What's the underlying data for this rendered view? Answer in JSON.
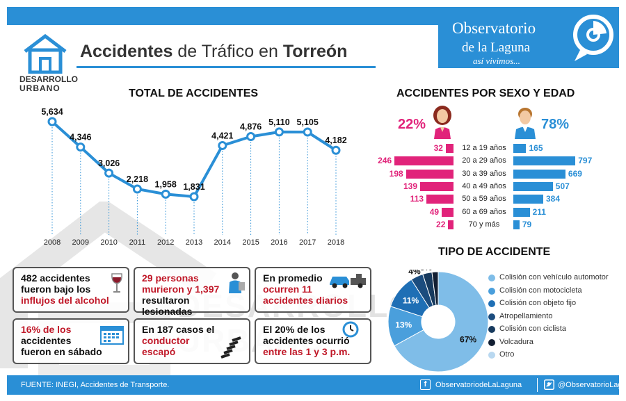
{
  "header": {
    "title_bold1": "Accidentes",
    "title_mid": " de Tráfico en ",
    "title_bold2": "Torreón",
    "logo_line1": "DESARROLLO",
    "logo_line2": "URBANO",
    "observatorio_line1": "Observatorio",
    "observatorio_line2": "de la Laguna",
    "observatorio_tagline": "así vivimos..."
  },
  "total_chart": {
    "title": "TOTAL DE ACCIDENTES",
    "chart_data": {
      "type": "line",
      "x": [
        "2008",
        "2009",
        "2010",
        "2011",
        "2012",
        "2013",
        "2014",
        "2015",
        "2016",
        "2017",
        "2018"
      ],
      "values": [
        5634,
        4346,
        3026,
        2218,
        1958,
        1831,
        4421,
        4876,
        5110,
        5105,
        4182
      ],
      "labels": [
        "5,634",
        "4,346",
        "3,026",
        "2,218",
        "1,958",
        "1,831",
        "4,421",
        "4,876",
        "5,110",
        "5,105",
        "4,182"
      ],
      "color": "#2a8fd6"
    }
  },
  "sexo_edad": {
    "title": "ACCIDENTES POR SEXO Y EDAD",
    "female_pct": "22%",
    "male_pct": "78%",
    "female_color": "#e1237a",
    "male_color": "#2a8fd6",
    "chart_data": {
      "type": "bar",
      "categories": [
        "12 a 19 años",
        "20 a 29 años",
        "30 a 39 años",
        "40 a 49 años",
        "50 a 59 años",
        "60 a 69 años",
        "70 y más"
      ],
      "series": [
        {
          "name": "22%",
          "values": [
            32,
            246,
            198,
            139,
            113,
            49,
            22
          ]
        },
        {
          "name": "78%",
          "values": [
            165,
            797,
            669,
            507,
            384,
            211,
            79
          ]
        }
      ]
    }
  },
  "cards": [
    {
      "parts": [
        "482 accidentes",
        "fueron  bajo los",
        "influjos del  alcohol"
      ],
      "icon": "wine-glass-icon"
    },
    {
      "parts": [
        "29 personas",
        "murieron y 1,397",
        "resultaron lesionadas"
      ],
      "icon": "injured-person-icon"
    },
    {
      "parts": [
        "En promedio",
        "ocurren 11",
        "accidentes diarios"
      ],
      "icon": "tow-truck-icon"
    },
    {
      "parts": [
        "16% de los",
        "accidentes",
        "fueron en sábado"
      ],
      "icon": "calendar-icon"
    },
    {
      "parts": [
        "En 187 casos el",
        "conductor",
        "escapó"
      ],
      "icon": "tire-track-icon"
    },
    {
      "parts": [
        "El 20% de los",
        "accidentes ocurrió",
        "entre las 1  y 3 p.m."
      ],
      "icon": "clock-icon"
    }
  ],
  "tipo": {
    "title": "TIPO DE ACCIDENTE",
    "chart_data": {
      "type": "pie",
      "categories": [
        "Colisión con vehículo automotor",
        "Colisión con motocicleta",
        "Colisión con objeto fijo",
        "Atropellamiento",
        "Colisión con ciclista",
        "Volcadura",
        "Otro"
      ],
      "values": [
        67,
        13,
        11,
        4,
        3,
        2,
        0
      ],
      "labels": [
        "67%",
        "13%",
        "11%",
        "4%",
        "3%",
        "2%",
        ""
      ],
      "colors": [
        "#7fbde8",
        "#4a9fdc",
        "#1f6fb5",
        "#1b4c7e",
        "#173a5e",
        "#121f33",
        "#b9d8f0"
      ]
    }
  },
  "footer": {
    "source": "FUENTE:  INEGI, Accidentes de Transporte.",
    "facebook": "ObservatoriodeLaLaguna",
    "twitter": "@ObservatorioLag"
  },
  "watermark": "DESARROLLO URBANO"
}
